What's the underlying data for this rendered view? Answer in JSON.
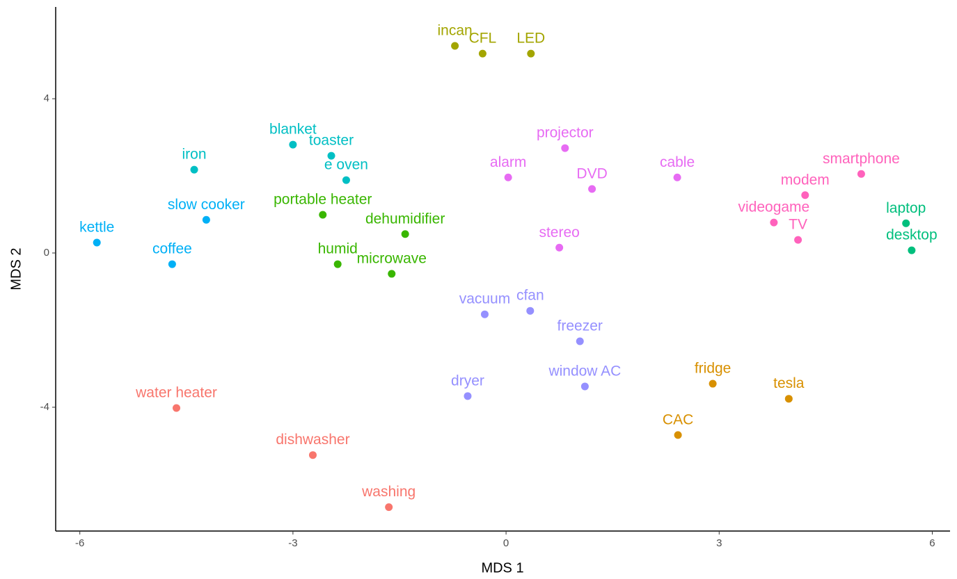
{
  "chart_data": {
    "type": "scatter",
    "x_label": "MDS 1",
    "y_label": "MDS 2",
    "xlim": [
      -6.34,
      6.25
    ],
    "ylim": [
      -7.21,
      6.38
    ],
    "xticks": [
      -6,
      -3,
      0,
      3,
      6
    ],
    "yticks": [
      -4,
      0,
      4
    ],
    "grid": false,
    "series": [
      {
        "color": "#F8766D",
        "labels": [
          "water heater",
          "dishwasher",
          "washing"
        ],
        "x": [
          -4.64,
          -2.72,
          -1.65
        ],
        "y": [
          -4.02,
          -5.24,
          -6.59
        ]
      },
      {
        "color": "#D89000",
        "labels": [
          "fridge",
          "tesla",
          "CAC"
        ],
        "x": [
          2.91,
          3.98,
          2.42
        ],
        "y": [
          -3.39,
          -3.78,
          -4.72
        ]
      },
      {
        "color": "#A3A500",
        "labels": [
          "incan",
          "CFL",
          "LED"
        ],
        "x": [
          -0.72,
          -0.33,
          0.35
        ],
        "y": [
          5.37,
          5.17,
          5.17
        ]
      },
      {
        "color": "#39B600",
        "labels": [
          "portable heater",
          "dehumidifier",
          "humid",
          "microwave"
        ],
        "x": [
          -2.58,
          -1.42,
          -2.37,
          -1.61
        ],
        "y": [
          0.99,
          0.49,
          -0.29,
          -0.54
        ]
      },
      {
        "color": "#00BF7D",
        "labels": [
          "laptop",
          "desktop"
        ],
        "x": [
          5.63,
          5.71
        ],
        "y": [
          0.77,
          0.07
        ]
      },
      {
        "color": "#00BFC4",
        "labels": [
          "blanket",
          "toaster",
          "iron",
          "e oven"
        ],
        "x": [
          -3.0,
          -2.46,
          -4.39,
          -2.25
        ],
        "y": [
          2.81,
          2.52,
          2.16,
          1.89
        ]
      },
      {
        "color": "#00B0F6",
        "labels": [
          "slow cooker",
          "kettle",
          "coffee"
        ],
        "x": [
          -4.22,
          -5.76,
          -4.7
        ],
        "y": [
          0.86,
          0.27,
          -0.29
        ]
      },
      {
        "color": "#9590FF",
        "labels": [
          "vacuum",
          "cfan",
          "freezer",
          "dryer",
          "window AC"
        ],
        "x": [
          -0.3,
          0.34,
          1.04,
          -0.54,
          1.11
        ],
        "y": [
          -1.59,
          -1.5,
          -2.29,
          -3.71,
          -3.46
        ]
      },
      {
        "color": "#E76BF3",
        "labels": [
          "projector",
          "alarm",
          "DVD",
          "cable",
          "stereo"
        ],
        "x": [
          0.83,
          0.03,
          1.21,
          2.41,
          0.75
        ],
        "y": [
          2.72,
          1.96,
          1.66,
          1.96,
          0.14
        ]
      },
      {
        "color": "#FF62BC",
        "labels": [
          "smartphone",
          "modem",
          "videogame",
          "TV"
        ],
        "x": [
          5.0,
          4.21,
          3.77,
          4.11
        ],
        "y": [
          2.05,
          1.5,
          0.79,
          0.34
        ]
      }
    ]
  }
}
